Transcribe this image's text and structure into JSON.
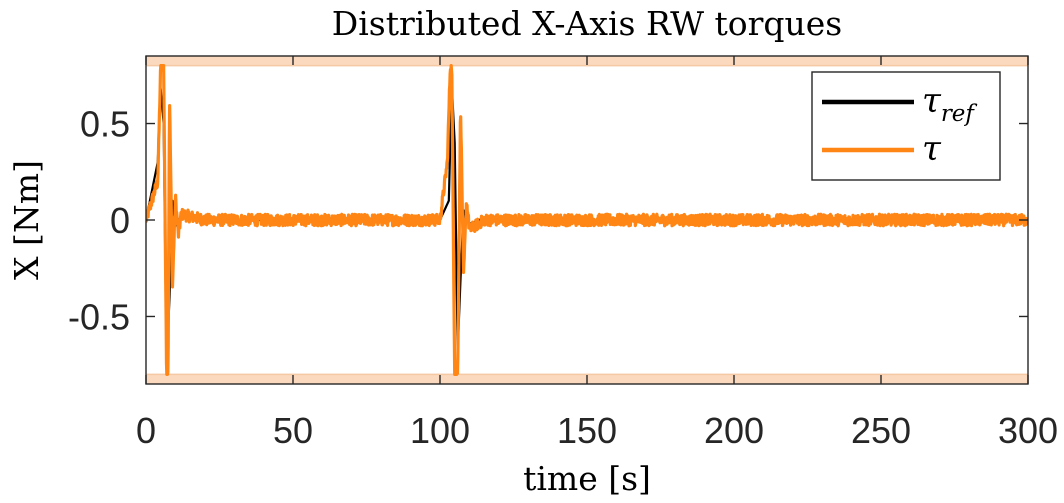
{
  "chart_data": {
    "type": "line",
    "title": "Distributed X-Axis RW torques",
    "xlabel": "time [s]",
    "ylabel": "X [Nm]",
    "xlim": [
      0,
      300
    ],
    "ylim": [
      -0.85,
      0.85
    ],
    "xticks": [
      0,
      50,
      100,
      150,
      200,
      250,
      300
    ],
    "xtick_labels": [
      "0",
      "50",
      "100",
      "150",
      "200",
      "250",
      "300"
    ],
    "yticks": [
      -0.5,
      0,
      0.5
    ],
    "ytick_labels": [
      "-0.5",
      "0",
      "0.5"
    ],
    "grid": false,
    "legend_position": "top-right",
    "saturation_band": {
      "upper": [
        0.8,
        0.85
      ],
      "lower": [
        -0.85,
        -0.8
      ],
      "color": "#FAD9BE"
    },
    "series": [
      {
        "name": "τ_ref",
        "legend_main": "τ",
        "legend_sub": "ref",
        "color": "#000000",
        "x": [
          0,
          4,
          5,
          6,
          7,
          8,
          9,
          10,
          12,
          20,
          60,
          100,
          103,
          104,
          105,
          106,
          107,
          108,
          110,
          115,
          150,
          200,
          250,
          300
        ],
        "y": [
          0,
          0.3,
          0.68,
          0.5,
          -0.75,
          -0.4,
          0.1,
          -0.03,
          0.02,
          0,
          0,
          0,
          0.1,
          0.7,
          0.4,
          -0.68,
          -0.3,
          0.05,
          -0.02,
          0.01,
          0,
          0,
          0,
          0
        ]
      },
      {
        "name": "τ",
        "legend_main": "τ",
        "legend_sub": "",
        "color": "#FF8614",
        "noise_amplitude": 0.03,
        "x": [
          0,
          4,
          5,
          6,
          7,
          7.5,
          8,
          9,
          10,
          11,
          12,
          20,
          60,
          100,
          102.5,
          103.5,
          104,
          105,
          106,
          107,
          108,
          109,
          110,
          115,
          150,
          200,
          250,
          300
        ],
        "y": [
          0,
          0.2,
          0.8,
          0.8,
          -0.8,
          -0.8,
          0.65,
          -0.35,
          0.12,
          -0.08,
          0.03,
          0,
          0,
          0,
          0.3,
          0.8,
          0.8,
          -0.8,
          -0.8,
          0.6,
          -0.3,
          0.1,
          -0.05,
          0,
          0,
          0,
          0,
          0
        ]
      }
    ]
  }
}
